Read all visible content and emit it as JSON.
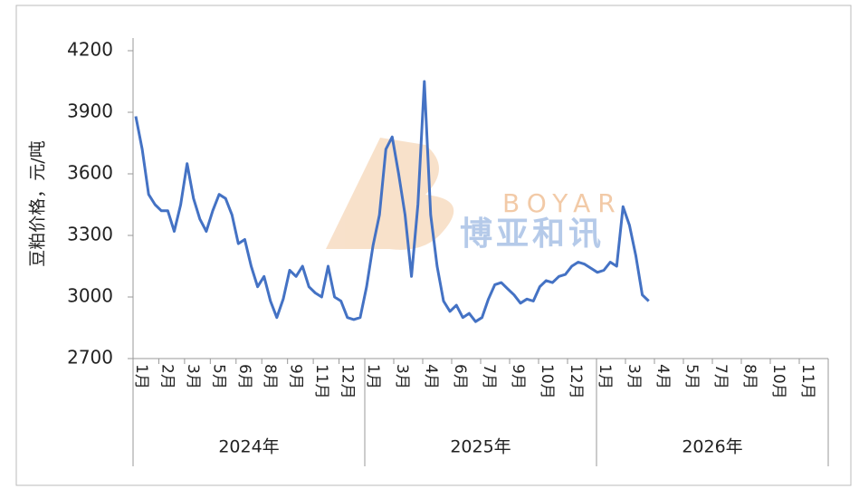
{
  "chart_data": {
    "type": "line",
    "y_label": "豆粕价格，元/吨",
    "ylim": [
      2700,
      4200
    ],
    "yticks": [
      2700,
      3000,
      3300,
      3600,
      3900,
      4200
    ],
    "color": "#4472c4",
    "watermark": {
      "latin": "BOYAR",
      "chinese": "博亚和讯"
    },
    "category_groups": [
      {
        "label": "2024年",
        "categories": [
          "1月",
          "2月",
          "3月",
          "5月",
          "6月",
          "8月",
          "9月",
          "11月",
          "12月"
        ]
      },
      {
        "label": "2025年",
        "categories": [
          "1月",
          "3月",
          "4月",
          "6月",
          "7月",
          "9月",
          "10月",
          "12月"
        ]
      },
      {
        "label": "2026年",
        "categories": [
          "1月",
          "3月",
          "4月",
          "5月",
          "7月",
          "8月",
          "10月",
          "11月"
        ]
      }
    ],
    "values": [
      3880,
      3720,
      3500,
      3450,
      3420,
      3420,
      3320,
      3450,
      3650,
      3480,
      3380,
      3320,
      3420,
      3500,
      3480,
      3400,
      3260,
      3280,
      3150,
      3050,
      3100,
      2980,
      2900,
      2990,
      3130,
      3100,
      3150,
      3050,
      3020,
      3000,
      3150,
      3000,
      2980,
      2900,
      2890,
      2900,
      3050,
      3250,
      3400,
      3720,
      3780,
      3600,
      3400,
      3100,
      3450,
      4050,
      3400,
      3150,
      2980,
      2930,
      2960,
      2900,
      2920,
      2880,
      2900,
      2990,
      3060,
      3070,
      3040,
      3010,
      2970,
      2990,
      2980,
      3050,
      3080,
      3070,
      3100,
      3110,
      3150,
      3170,
      3160,
      3140,
      3120,
      3130,
      3170,
      3150,
      3440,
      3350,
      3200,
      3010,
      2980,
      null,
      null,
      null,
      null,
      null,
      null,
      null,
      null,
      null,
      null,
      null,
      null,
      null,
      null,
      null,
      null,
      null,
      null,
      null,
      null,
      null,
      null,
      null,
      null,
      null,
      null,
      null
    ]
  }
}
